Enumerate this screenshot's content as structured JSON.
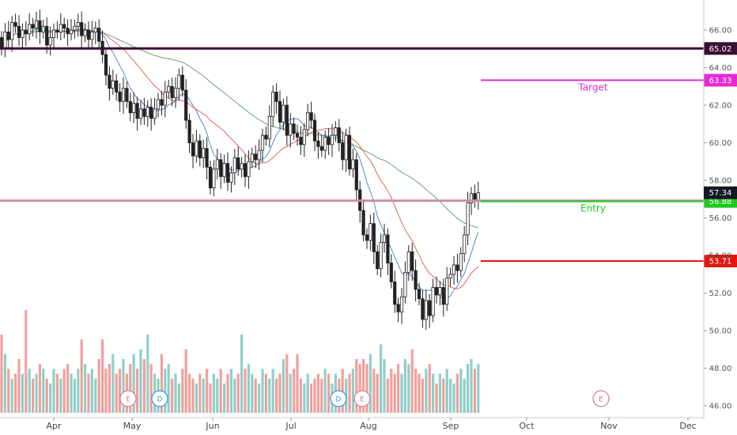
{
  "chart_data": {
    "type": "candlestick",
    "x_labels": [
      "Apr",
      "May",
      "Jun",
      "Jul",
      "Aug",
      "Sep",
      "Oct",
      "Nov",
      "Dec"
    ],
    "y_ticks": [
      46,
      48,
      50,
      52,
      54,
      56,
      58,
      60,
      62,
      64,
      66
    ],
    "y_tick_labels": [
      "46.00",
      "48.00",
      "50.00",
      "52.00",
      "54.00",
      "56.00",
      "58.00",
      "60.00",
      "62.00",
      "64.00",
      "66.00"
    ],
    "ylim": [
      45.5,
      67.6
    ],
    "grid": false,
    "price": {
      "start_open": 65.6,
      "closes": [
        65.0,
        65.9,
        65.5,
        66.4,
        66.2,
        65.6,
        66.0,
        65.8,
        66.3,
        66.1,
        66.5,
        65.9,
        66.2,
        65.2,
        65.6,
        66.0,
        65.9,
        66.3,
        66.1,
        65.8,
        66.0,
        66.2,
        66.4,
        65.7,
        66.0,
        65.5,
        65.9,
        66.1,
        65.4,
        64.7,
        63.6,
        62.9,
        63.3,
        62.7,
        62.2,
        62.9,
        62.2,
        61.6,
        62.1,
        61.3,
        61.8,
        61.4,
        61.9,
        61.3,
        61.8,
        62.3,
        62.0,
        62.7,
        63.0,
        62.4,
        62.9,
        63.6,
        62.8,
        61.2,
        60.0,
        59.3,
        60.1,
        59.2,
        59.7,
        58.7,
        57.6,
        58.6,
        59.1,
        58.2,
        58.9,
        57.9,
        58.4,
        59.2,
        58.6,
        58.9,
        58.2,
        59.0,
        59.4,
        59.1,
        59.6,
        60.4,
        60.2,
        61.4,
        62.7,
        62.2,
        61.1,
        62.0,
        60.4,
        61.0,
        60.5,
        60.3,
        59.9,
        60.7,
        61.6,
        61.2,
        60.1,
        59.8,
        59.6,
        60.3,
        59.9,
        60.4,
        60.8,
        60.0,
        59.1,
        60.4,
        58.6,
        59.1,
        57.5,
        56.4,
        55.1,
        54.8,
        55.7,
        54.2,
        53.3,
        54.7,
        55.1,
        53.6,
        52.6,
        51.4,
        51.0,
        51.8,
        53.1,
        54.2,
        53.2,
        52.2,
        51.7,
        50.6,
        51.6,
        50.8,
        52.3,
        51.9,
        52.3,
        51.4,
        52.8,
        53.0,
        53.5,
        53.2,
        54.1,
        55.1,
        56.8,
        57.3,
        56.9,
        57.34
      ],
      "candle_count": 138,
      "last_price": 57.34,
      "last_price_label": "57.34"
    },
    "moving_averages": [
      {
        "period": 9,
        "color": "#5b86c8"
      },
      {
        "period": 20,
        "color": "#e0675e"
      },
      {
        "period": 50,
        "color": "#6aa56a"
      }
    ],
    "volume": {
      "values": [
        1.6,
        1.2,
        0.9,
        0.7,
        0.8,
        1.1,
        0.8,
        2.1,
        0.9,
        0.7,
        0.8,
        1.0,
        0.9,
        0.7,
        0.6,
        0.9,
        0.8,
        0.7,
        0.9,
        1.0,
        0.8,
        0.7,
        0.9,
        1.5,
        1.0,
        0.8,
        0.9,
        0.7,
        1.1,
        1.5,
        0.9,
        1.0,
        1.2,
        0.8,
        0.9,
        1.1,
        0.8,
        1.0,
        1.2,
        0.9,
        1.3,
        1.1,
        1.6,
        1.0,
        0.8,
        0.7,
        1.2,
        0.9,
        1.0,
        0.7,
        0.8,
        0.6,
        0.9,
        1.3,
        0.8,
        0.7,
        0.6,
        0.8,
        0.7,
        0.9,
        0.6,
        0.8,
        0.7,
        0.9,
        0.6,
        0.8,
        0.9,
        0.7,
        0.8,
        1.6,
        0.9,
        1.0,
        0.8,
        0.7,
        0.6,
        0.9,
        0.8,
        0.7,
        0.9,
        0.7,
        0.8,
        1.1,
        1.2,
        0.8,
        0.9,
        1.2,
        0.7,
        0.6,
        0.8,
        0.6,
        0.7,
        0.8,
        0.7,
        0.9,
        0.8,
        0.6,
        0.8,
        0.7,
        0.9,
        0.7,
        0.8,
        0.9,
        1.1,
        1.0,
        1.1,
        1.0,
        1.2,
        0.9,
        0.8,
        1.4,
        1.1,
        0.7,
        0.9,
        0.8,
        1.0,
        0.8,
        1.1,
        1.0,
        1.3,
        0.9,
        0.8,
        0.7,
        0.9,
        1.0,
        0.8,
        0.6,
        0.8,
        0.7,
        0.9,
        0.7,
        0.6,
        0.8,
        0.9,
        0.7,
        1.0,
        1.1,
        0.9,
        1.0
      ],
      "up_color": "#8fcfc9",
      "down_color": "#f0a09c"
    },
    "horizontal_levels": [
      {
        "price": 65.02,
        "label": "65.02",
        "color": "#3d0f35",
        "full_width": true
      },
      {
        "price": 63.33,
        "label": "63.33",
        "color": "#e52ad4",
        "full_width": false,
        "annotation": "Target"
      },
      {
        "price": 56.92,
        "label": "56.92",
        "color": "#cc8aaa",
        "full_width": true
      },
      {
        "price": 56.88,
        "label": "56.88",
        "color": "#1ec81e",
        "full_width": false,
        "annotation": "Entry"
      },
      {
        "price": 53.71,
        "label": "53.71",
        "color": "#e0160f",
        "full_width": false
      }
    ],
    "event_markers": [
      {
        "letter": "E",
        "month": "May",
        "color": "#e07a8a"
      },
      {
        "letter": "D",
        "month": "May",
        "color": "#3a9ad9"
      },
      {
        "letter": "D",
        "month": "Aug",
        "color": "#3a9ad9"
      },
      {
        "letter": "E",
        "month": "Aug",
        "color": "#e07a8a"
      },
      {
        "letter": "E",
        "month": "Nov",
        "color": "#e07a8a"
      }
    ],
    "colors": {
      "up_candle_body": "#ffffff",
      "up_candle_border": "#222222",
      "down_candle_body": "#222222",
      "wick": "#222222"
    }
  }
}
